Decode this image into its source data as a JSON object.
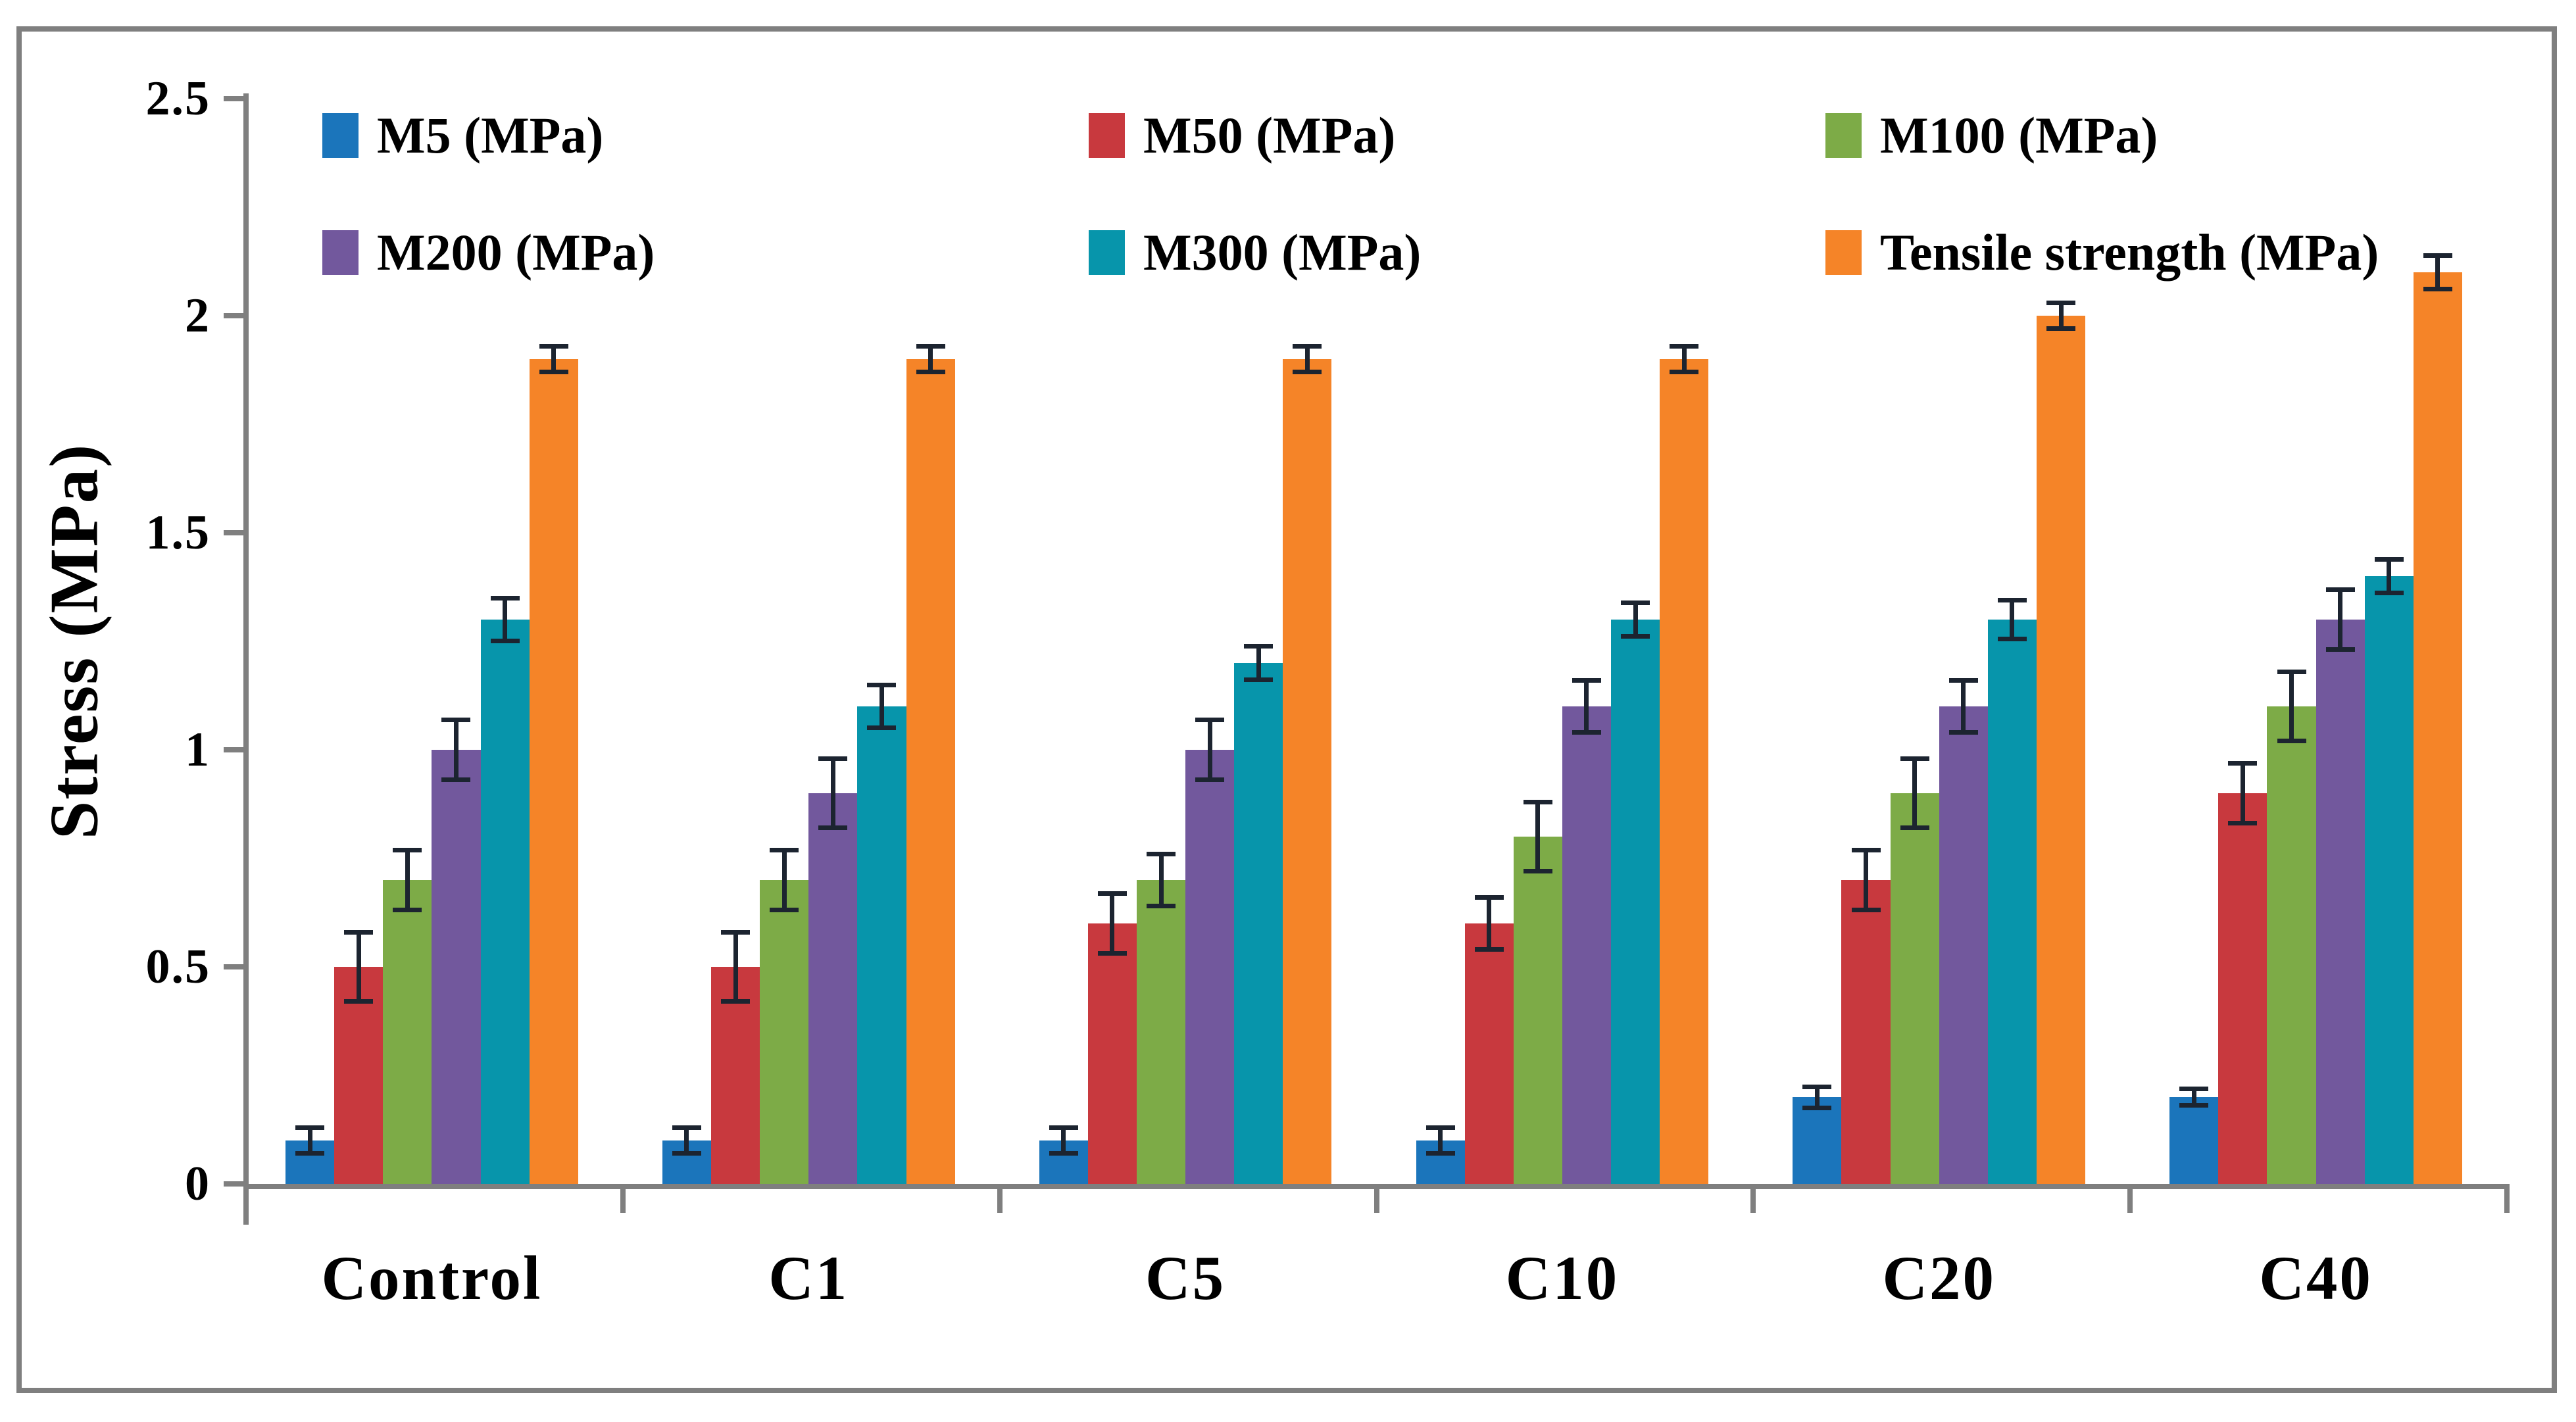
{
  "figure": {
    "description": "Grouped column chart with error bars on white background inside a gray frame"
  },
  "chart_data": {
    "type": "bar",
    "title": "",
    "xlabel": "",
    "ylabel": "Stress (MPa)",
    "ylim": [
      0,
      2.5
    ],
    "yticks": [
      0,
      0.5,
      1,
      1.5,
      2,
      2.5
    ],
    "ytick_labels": [
      "0",
      "0.5",
      "1",
      "1.5",
      "2",
      "2.5"
    ],
    "grid": false,
    "error_bars": true,
    "legend_position": "inside-top, 2 rows x 3 columns",
    "categories": [
      "Control",
      "C1",
      "C5",
      "C10",
      "C20",
      "C40"
    ],
    "series": [
      {
        "name": "M5 (MPa)",
        "color": "#1B75BB",
        "values": [
          0.1,
          0.1,
          0.1,
          0.1,
          0.2,
          0.2
        ],
        "errors": [
          0.03,
          0.03,
          0.03,
          0.03,
          0.025,
          0.02
        ]
      },
      {
        "name": "M50 (MPa)",
        "color": "#C8393E",
        "values": [
          0.5,
          0.5,
          0.6,
          0.6,
          0.7,
          0.9
        ],
        "errors": [
          0.08,
          0.08,
          0.07,
          0.06,
          0.07,
          0.07
        ]
      },
      {
        "name": "M100 (MPa)",
        "color": "#7DAB47",
        "values": [
          0.7,
          0.7,
          0.7,
          0.8,
          0.9,
          1.1
        ],
        "errors": [
          0.07,
          0.07,
          0.06,
          0.08,
          0.08,
          0.08
        ]
      },
      {
        "name": "M200 (MPa)",
        "color": "#72589D",
        "values": [
          1.0,
          0.9,
          1.0,
          1.1,
          1.1,
          1.3
        ],
        "errors": [
          0.07,
          0.08,
          0.07,
          0.06,
          0.06,
          0.07
        ]
      },
      {
        "name": "M300 (MPa)",
        "color": "#0795AB",
        "values": [
          1.3,
          1.1,
          1.2,
          1.3,
          1.3,
          1.4
        ],
        "errors": [
          0.05,
          0.05,
          0.04,
          0.04,
          0.045,
          0.04
        ]
      },
      {
        "name": "Tensile strength (MPa)",
        "color": "#F58428",
        "values": [
          1.9,
          1.9,
          1.9,
          1.9,
          2.0,
          2.1
        ],
        "errors": [
          0.03,
          0.03,
          0.03,
          0.03,
          0.03,
          0.04
        ]
      }
    ],
    "axis_color": "#7f7f7f",
    "error_bar_color": "#1C2430",
    "text_color": "#000000",
    "background": "#FFFFFF"
  }
}
